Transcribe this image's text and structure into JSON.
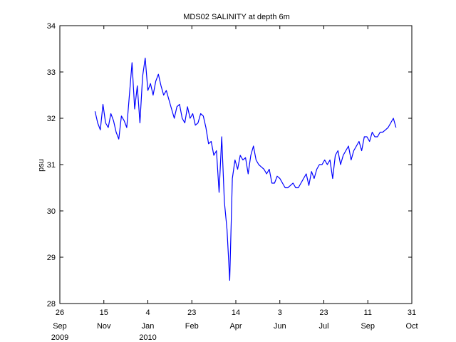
{
  "chart_data": {
    "type": "line",
    "title": "MDS02 SALINITY at depth 6m",
    "xlabel": "",
    "ylabel": "psu",
    "ylim": [
      28,
      34
    ],
    "xlim": [
      "2009-09-26",
      "2010-10-31"
    ],
    "yticks": [
      28,
      29,
      30,
      31,
      32,
      33,
      34
    ],
    "xticks": [
      {
        "date": "2009-09-26",
        "day": "26",
        "month": "Sep",
        "year": "2009"
      },
      {
        "date": "2009-11-15",
        "day": "15",
        "month": "Nov",
        "year": ""
      },
      {
        "date": "2010-01-04",
        "day": "4",
        "month": "Jan",
        "year": "2010"
      },
      {
        "date": "2010-02-23",
        "day": "23",
        "month": "Feb",
        "year": ""
      },
      {
        "date": "2010-04-14",
        "day": "14",
        "month": "Apr",
        "year": ""
      },
      {
        "date": "2010-06-03",
        "day": "3",
        "month": "Jun",
        "year": ""
      },
      {
        "date": "2010-07-23",
        "day": "23",
        "month": "Jul",
        "year": ""
      },
      {
        "date": "2010-09-11",
        "day": "11",
        "month": "Sep",
        "year": ""
      },
      {
        "date": "2010-10-31",
        "day": "31",
        "month": "Oct",
        "year": ""
      }
    ],
    "grid": false,
    "series_color": "#0000ff",
    "series": [
      {
        "x": [
          "2009-11-05",
          "2009-11-08",
          "2009-11-11",
          "2009-11-14",
          "2009-11-17",
          "2009-11-20",
          "2009-11-23",
          "2009-11-26",
          "2009-11-29",
          "2009-12-02",
          "2009-12-05",
          "2009-12-08",
          "2009-12-11",
          "2009-12-14",
          "2009-12-17",
          "2009-12-20",
          "2009-12-23",
          "2009-12-26",
          "2009-12-29",
          "2010-01-01",
          "2010-01-04",
          "2010-01-07",
          "2010-01-10",
          "2010-01-13",
          "2010-01-16",
          "2010-01-19",
          "2010-01-22",
          "2010-01-25",
          "2010-01-28",
          "2010-01-31",
          "2010-02-03",
          "2010-02-06",
          "2010-02-09",
          "2010-02-12",
          "2010-02-15",
          "2010-02-18",
          "2010-02-21",
          "2010-02-24",
          "2010-02-27",
          "2010-03-02",
          "2010-03-05",
          "2010-03-08",
          "2010-03-11",
          "2010-03-14",
          "2010-03-17",
          "2010-03-20",
          "2010-03-23",
          "2010-03-26",
          "2010-03-29",
          "2010-04-01",
          "2010-04-04",
          "2010-04-07",
          "2010-04-10",
          "2010-04-13",
          "2010-04-16",
          "2010-04-19",
          "2010-04-22",
          "2010-04-25",
          "2010-04-28",
          "2010-05-01",
          "2010-05-04",
          "2010-05-07",
          "2010-05-10",
          "2010-05-13",
          "2010-05-16",
          "2010-05-19",
          "2010-05-22",
          "2010-05-25",
          "2010-05-28",
          "2010-05-31",
          "2010-06-03",
          "2010-06-06",
          "2010-06-09",
          "2010-06-12",
          "2010-06-15",
          "2010-06-18",
          "2010-06-21",
          "2010-06-24",
          "2010-06-27",
          "2010-06-30",
          "2010-07-03",
          "2010-07-06",
          "2010-07-09",
          "2010-07-12",
          "2010-07-15",
          "2010-07-18",
          "2010-07-21",
          "2010-07-24",
          "2010-07-27",
          "2010-07-30",
          "2010-08-02",
          "2010-08-05",
          "2010-08-08",
          "2010-08-11",
          "2010-08-14",
          "2010-08-17",
          "2010-08-20",
          "2010-08-23",
          "2010-08-26",
          "2010-08-29",
          "2010-09-01",
          "2010-09-04",
          "2010-09-07",
          "2010-09-10",
          "2010-09-13",
          "2010-09-16",
          "2010-09-19",
          "2010-09-22",
          "2010-09-25",
          "2010-09-28",
          "2010-10-01",
          "2010-10-04",
          "2010-10-07",
          "2010-10-10",
          "2010-10-13"
        ],
        "y": [
          32.15,
          31.9,
          31.75,
          32.3,
          31.9,
          31.8,
          32.1,
          31.95,
          31.7,
          31.55,
          32.05,
          31.95,
          31.8,
          32.5,
          33.2,
          32.2,
          32.7,
          31.9,
          32.9,
          33.3,
          32.6,
          32.75,
          32.5,
          32.8,
          32.95,
          32.7,
          32.5,
          32.6,
          32.4,
          32.2,
          32.0,
          32.25,
          32.3,
          32.0,
          31.9,
          32.25,
          32.0,
          32.1,
          31.85,
          31.9,
          32.1,
          32.05,
          31.8,
          31.45,
          31.5,
          31.2,
          31.3,
          30.4,
          31.6,
          30.2,
          29.6,
          28.5,
          30.7,
          31.1,
          30.9,
          31.2,
          31.1,
          31.15,
          30.8,
          31.2,
          31.4,
          31.1,
          31.0,
          30.95,
          30.9,
          30.8,
          30.9,
          30.6,
          30.6,
          30.75,
          30.7,
          30.6,
          30.5,
          30.5,
          30.55,
          30.6,
          30.5,
          30.5,
          30.6,
          30.7,
          30.8,
          30.55,
          30.85,
          30.7,
          30.9,
          31.0,
          31.0,
          31.1,
          31.0,
          31.1,
          30.7,
          31.2,
          31.3,
          31.0,
          31.2,
          31.3,
          31.4,
          31.1,
          31.3,
          31.4,
          31.5,
          31.3,
          31.6,
          31.6,
          31.5,
          31.7,
          31.6,
          31.6,
          31.7,
          31.7,
          31.75,
          31.8,
          31.9,
          32.0,
          31.8
        ]
      }
    ]
  }
}
